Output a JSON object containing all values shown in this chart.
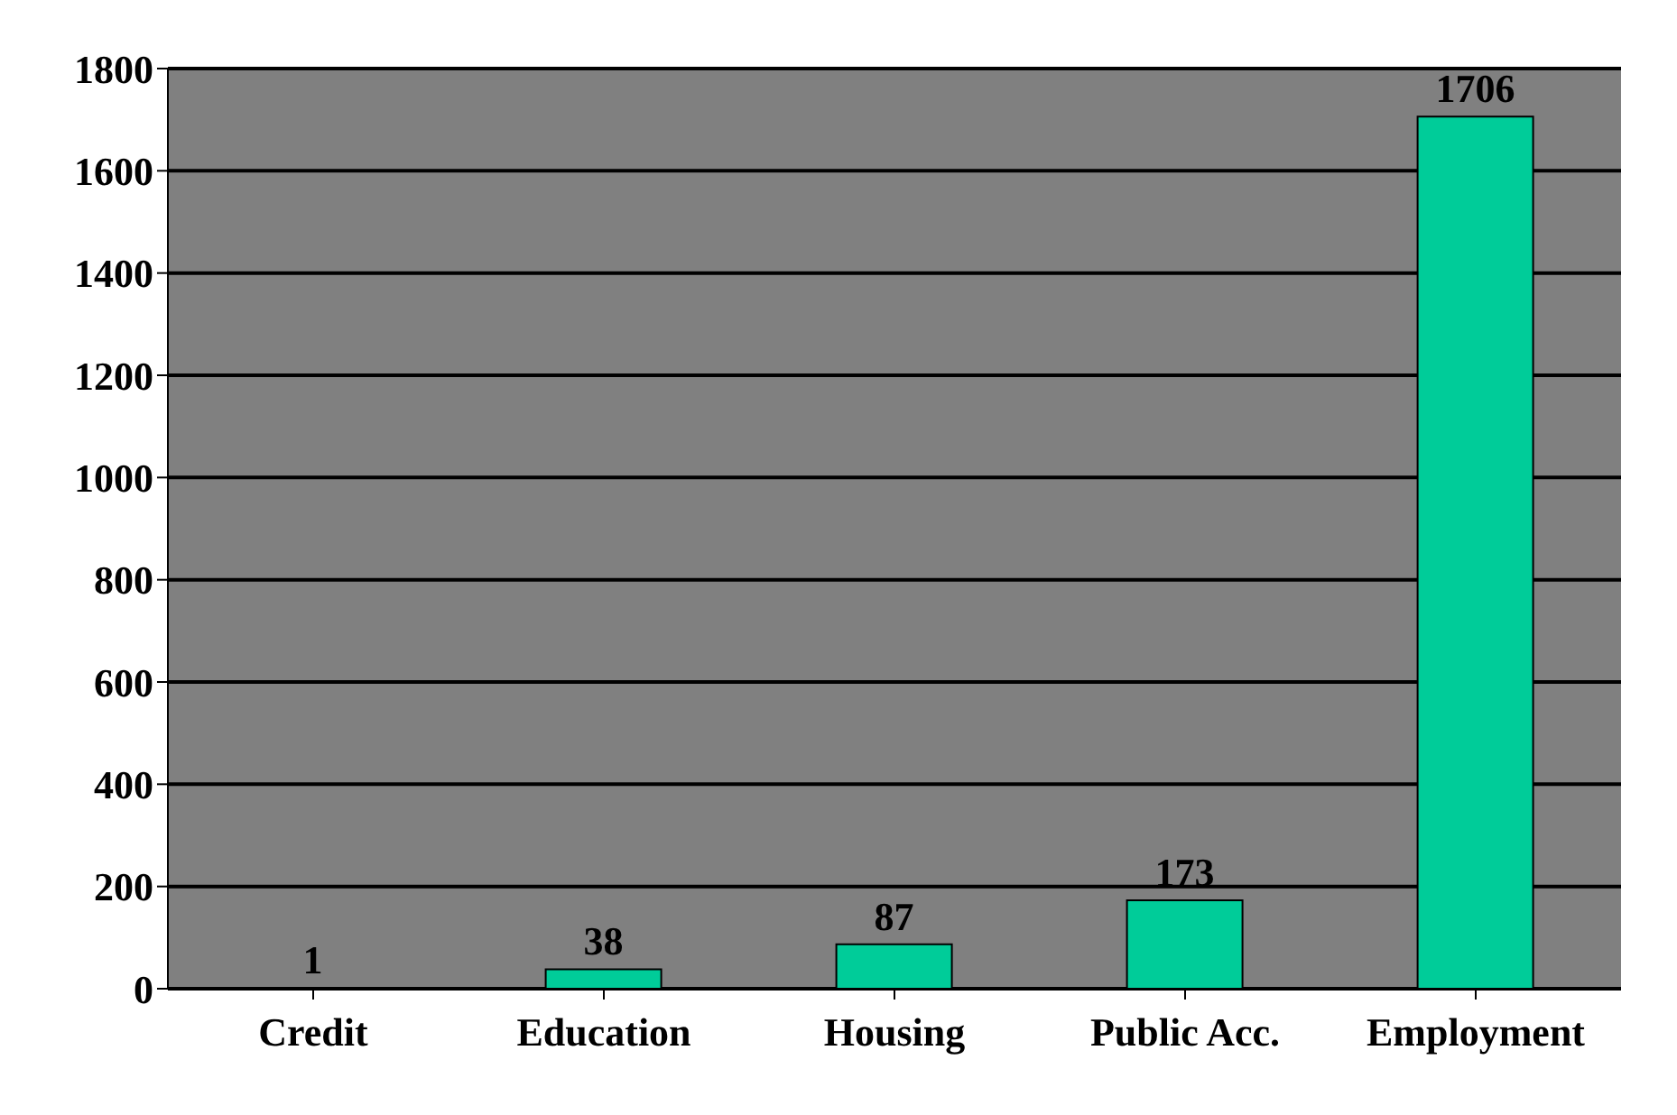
{
  "chart_data": {
    "type": "bar",
    "categories": [
      "Credit",
      "Education",
      "Housing",
      "Public Acc.",
      "Employment"
    ],
    "values": [
      1,
      38,
      87,
      173,
      1706
    ],
    "color": "#00cc99",
    "ylim": [
      0,
      1800
    ],
    "yticks": [
      0,
      200,
      400,
      600,
      800,
      1000,
      1200,
      1400,
      1600,
      1800
    ],
    "grid": "y",
    "data_labels": true
  }
}
